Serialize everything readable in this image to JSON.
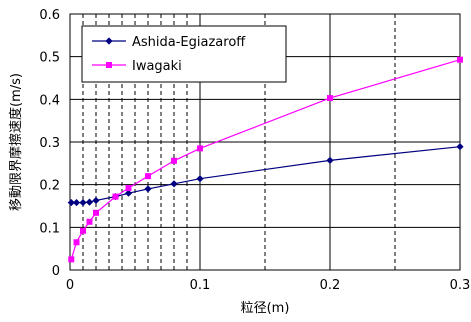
{
  "chart_data": {
    "type": "line",
    "xlabel": "粒径(m)",
    "ylabel": "移動限界摩擦速度(m/s)",
    "xlim": [
      0,
      0.3
    ],
    "ylim": [
      0,
      0.6
    ],
    "x_ticks": [
      "0",
      "0.1",
      "0.2",
      "0.3"
    ],
    "y_ticks": [
      "0",
      "0.1",
      "0.2",
      "0.3",
      "0.4",
      "0.5",
      "0.6"
    ],
    "x_gridlines_dashed": [
      0.01,
      0.02,
      0.03,
      0.04,
      0.05,
      0.06,
      0.07,
      0.08,
      0.09,
      0.15,
      0.25
    ],
    "x_gridlines_solid": [
      0.1,
      0.2
    ],
    "y_grid": true,
    "legend_position": "top-left",
    "series": [
      {
        "name": "Ashida-Egiazaroff",
        "color": "#000080",
        "marker": "diamond",
        "points": [
          [
            0.001,
            0.158
          ],
          [
            0.005,
            0.158
          ],
          [
            0.01,
            0.158
          ],
          [
            0.015,
            0.159
          ],
          [
            0.02,
            0.163
          ],
          [
            0.035,
            0.172
          ],
          [
            0.045,
            0.18
          ],
          [
            0.06,
            0.19
          ],
          [
            0.08,
            0.202
          ],
          [
            0.1,
            0.214
          ],
          [
            0.2,
            0.257
          ],
          [
            0.3,
            0.289
          ]
        ]
      },
      {
        "name": "Iwagaki",
        "color": "#ff00ff",
        "marker": "square",
        "points": [
          [
            0.001,
            0.025
          ],
          [
            0.005,
            0.065
          ],
          [
            0.01,
            0.092
          ],
          [
            0.015,
            0.113
          ],
          [
            0.02,
            0.134
          ],
          [
            0.035,
            0.172
          ],
          [
            0.045,
            0.192
          ],
          [
            0.06,
            0.22
          ],
          [
            0.08,
            0.256
          ],
          [
            0.1,
            0.285
          ],
          [
            0.2,
            0.403
          ],
          [
            0.3,
            0.493
          ]
        ]
      }
    ]
  }
}
